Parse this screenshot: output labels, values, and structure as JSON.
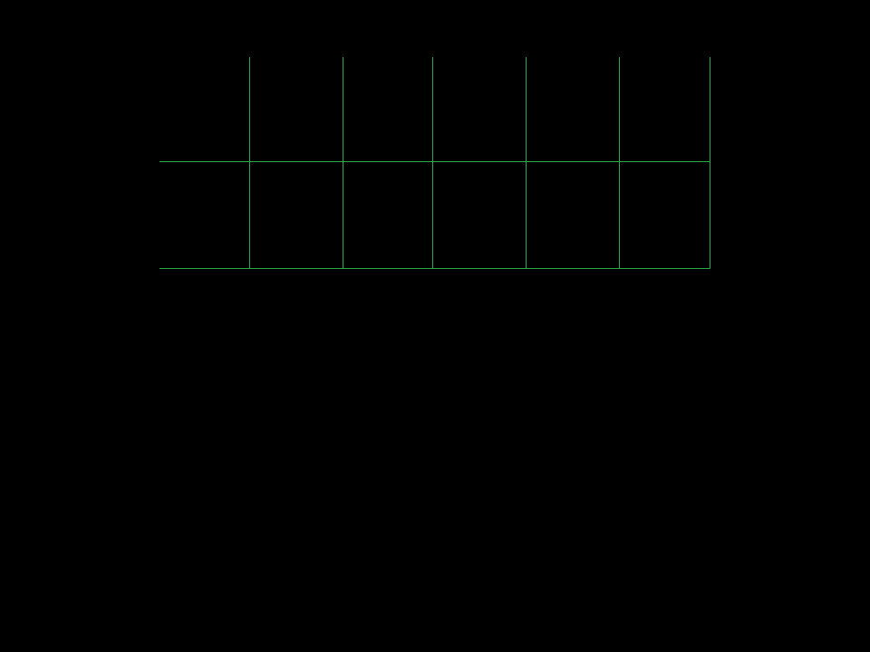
{
  "background_color": "#000000",
  "grid": {
    "line_color": "#2ea84f",
    "columns": 6,
    "rows": 2,
    "open_top_edge": true,
    "open_left_edge": true
  }
}
